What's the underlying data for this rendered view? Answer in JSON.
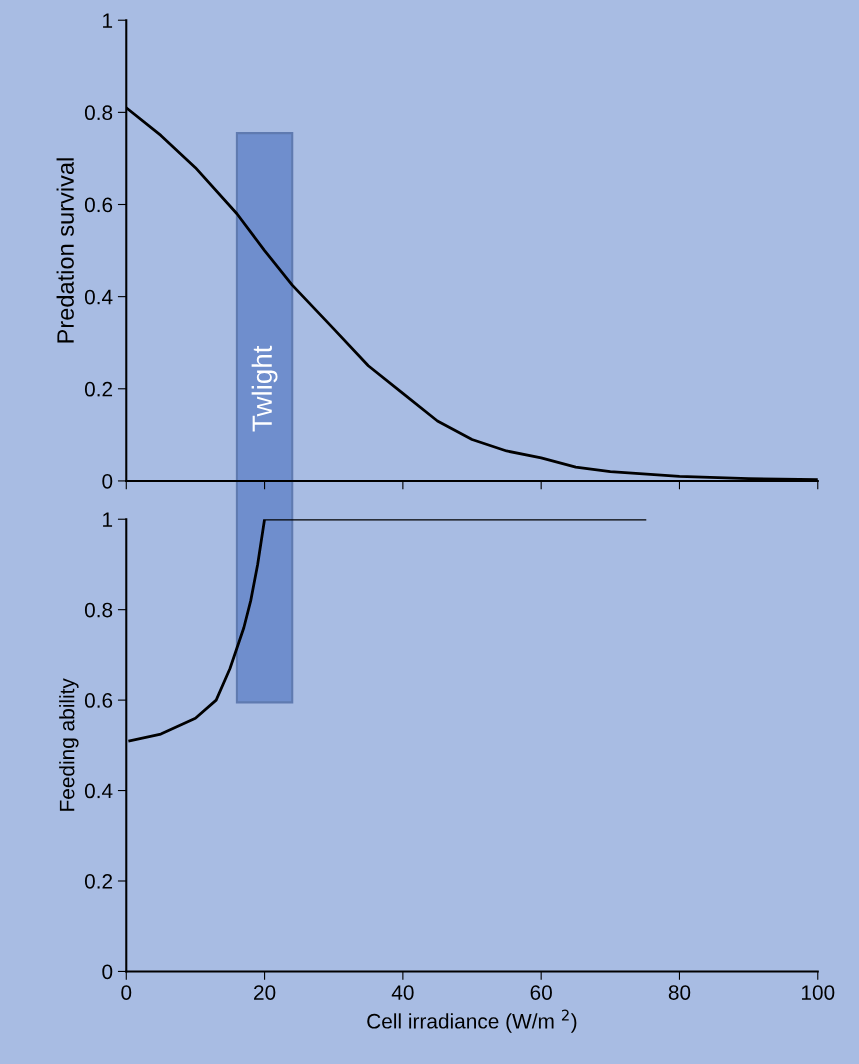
{
  "chart_data": [
    {
      "type": "line",
      "ylabel": "Predation survival",
      "x": [
        0,
        5,
        10,
        16,
        20,
        24,
        30,
        35,
        40,
        45,
        50,
        55,
        60,
        65,
        70,
        80,
        90,
        100
      ],
      "series": [
        {
          "color": "#000000",
          "values": [
            0.81,
            0.75,
            0.68,
            0.58,
            0.5,
            0.425,
            0.33,
            0.25,
            0.19,
            0.13,
            0.09,
            0.065,
            0.05,
            0.03,
            0.02,
            0.01,
            0.005,
            0.003
          ]
        }
      ],
      "xlim": [
        0,
        100
      ],
      "xticks": [
        {
          "value": 0,
          "label": null
        },
        {
          "value": 20,
          "label": null
        },
        {
          "value": 40,
          "label": null
        },
        {
          "value": 60,
          "label": null
        },
        {
          "value": 80,
          "label": null
        },
        {
          "value": 100,
          "label": null
        }
      ],
      "ylim": [
        0,
        1
      ],
      "yticks": [
        0,
        0.2,
        0.4,
        0.6,
        0.8,
        1
      ],
      "tick_labels": "y",
      "bands": [
        {
          "axis": "x",
          "from": 16,
          "to": 24,
          "label": "Twlight",
          "color": "#4a70c0"
        }
      ]
    },
    {
      "type": "line",
      "xlabel": "Cell irradiance (W/m $^{2}$)",
      "ylabel": "Feeding ability",
      "x": [
        0.5,
        5,
        10,
        13,
        15,
        17,
        18,
        19,
        20,
        30,
        50,
        75
      ],
      "series": [
        {
          "color": "#000000",
          "values": [
            0.51,
            0.525,
            0.56,
            0.6,
            0.67,
            0.76,
            0.82,
            0.9,
            1,
            1,
            1,
            1
          ]
        }
      ],
      "xlim": [
        0,
        100
      ],
      "xticks": [
        0,
        20,
        40,
        60,
        80,
        100
      ],
      "ylim": [
        0,
        1
      ],
      "yticks": [
        0,
        0.2,
        0.4,
        0.6,
        0.8,
        1
      ]
    }
  ]
}
